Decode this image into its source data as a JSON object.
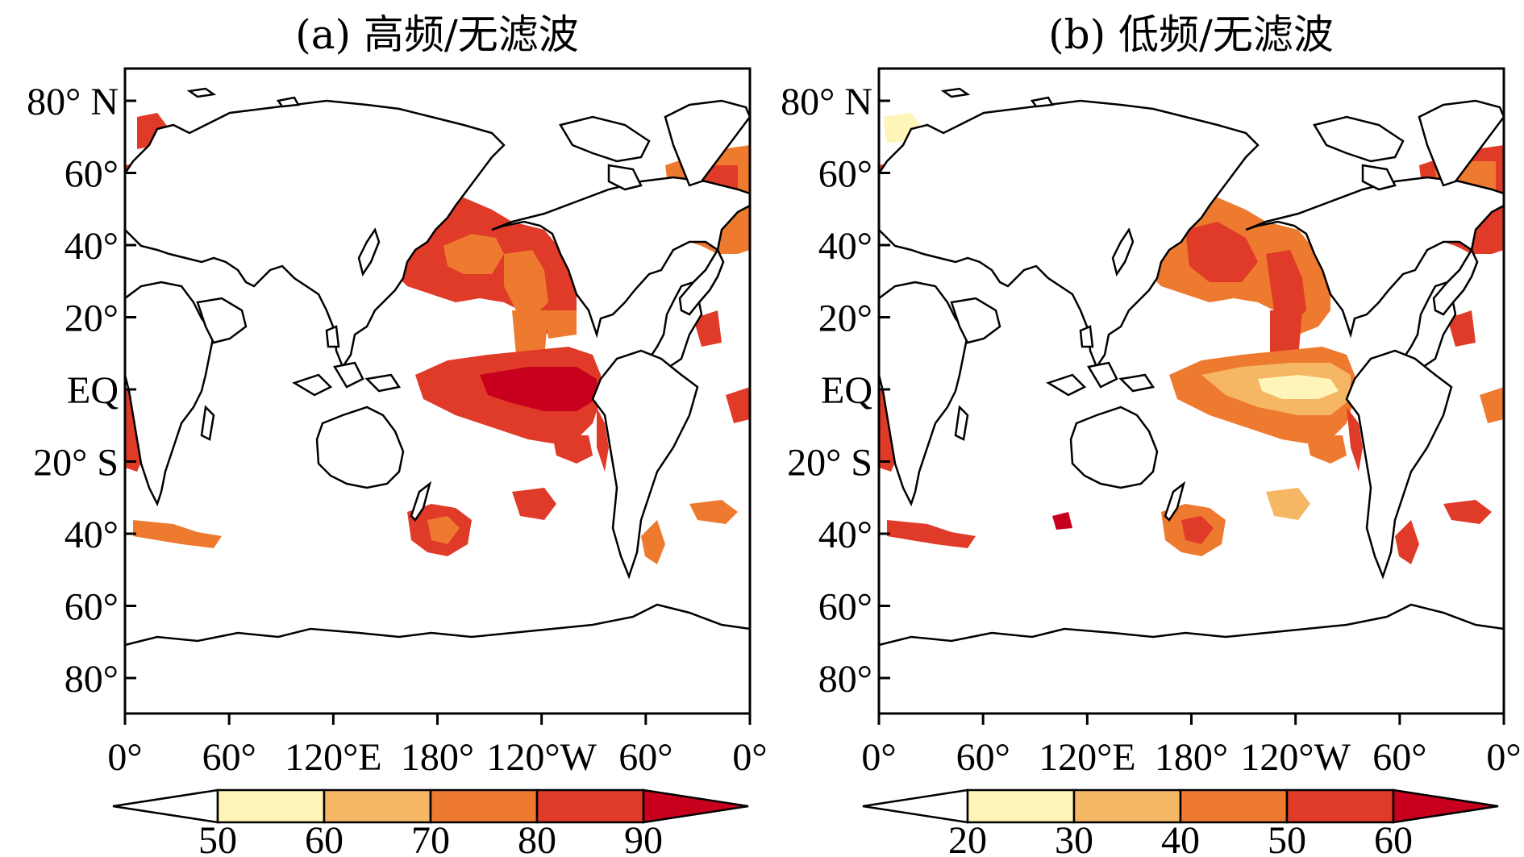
{
  "panels": [
    {
      "title": "(a) 高频/无滤波",
      "colorbar": {
        "labels": [
          "50",
          "60",
          "70",
          "80",
          "90"
        ],
        "colors": [
          "#fff5b8",
          "#f6b765",
          "#ee7a30",
          "#e03a28",
          "#c8001e"
        ]
      }
    },
    {
      "title": "(b) 低频/无滤波",
      "colorbar": {
        "labels": [
          "20",
          "30",
          "40",
          "50",
          "60"
        ],
        "colors": [
          "#fff5b8",
          "#f6b765",
          "#ee7a30",
          "#e03a28",
          "#c8001e"
        ]
      }
    }
  ],
  "axes": {
    "y_ticks": [
      "80° N",
      "60°",
      "40°",
      "20°",
      "EQ",
      "20° S",
      "40°",
      "60°",
      "80°"
    ],
    "x_ticks": [
      "0°",
      "60°",
      "120°E",
      "180°",
      "120°W",
      "60°",
      "0°"
    ]
  }
}
